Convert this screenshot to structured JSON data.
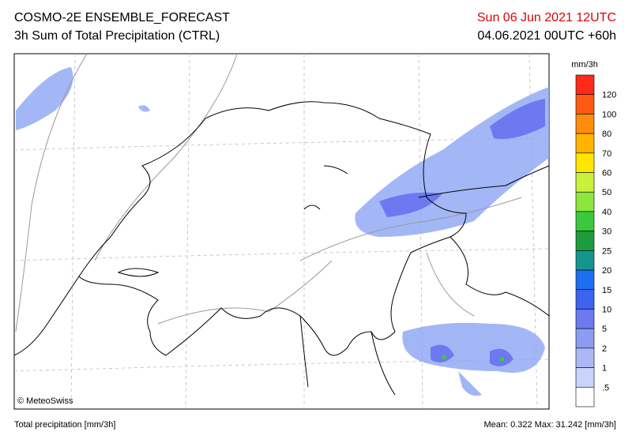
{
  "header": {
    "title": "COSMO-2E ENSEMBLE_FORECAST",
    "subtitle": "3h Sum of Total Precipitation (CTRL)",
    "valid_time": "Sun 06 Jun 2021 12UTC",
    "run_time": "04.06.2021 00UTC +60h"
  },
  "map": {
    "credit": "© MeteoSwiss"
  },
  "colorbar": {
    "unit": "mm/3h",
    "colors": [
      "#ff2a1a",
      "#ff5a14",
      "#ff8c0c",
      "#ffb400",
      "#ffe600",
      "#c8f03c",
      "#8ce63c",
      "#3cc83c",
      "#1e9b3c",
      "#14968c",
      "#1e6ef0",
      "#3c64f0",
      "#6e78f0",
      "#8c9cf0",
      "#aab9f5",
      "#c8d4fa",
      "#ffffff"
    ],
    "labels": [
      "120",
      "100",
      "80",
      "70",
      "60",
      "50",
      "40",
      "30",
      "25",
      "20",
      "15",
      "10",
      "5",
      "2",
      "1",
      ".5"
    ]
  },
  "footer": {
    "left": "Total precipitation [mm/3h]",
    "right": "Mean:  0.322 Max: 31.242 [mm/3h]"
  }
}
